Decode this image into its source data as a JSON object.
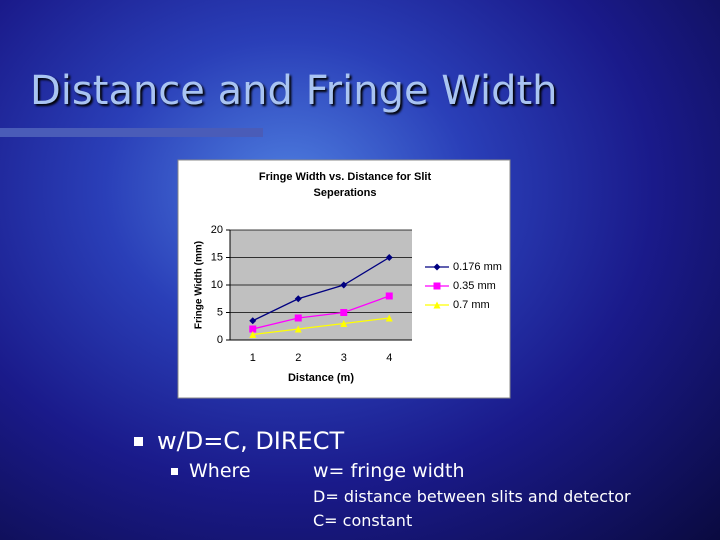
{
  "title": "Distance and Fringe Width",
  "bullets": [
    {
      "text": "w/D=C, DIRECT",
      "sub": [
        {
          "label": "Where",
          "lines": [
            "w= fringe width",
            "D= distance between slits and detector",
            "C= constant"
          ]
        }
      ]
    }
  ],
  "chart_data": {
    "type": "line",
    "title": "Fringe Width vs. Distance for Slit Seperations",
    "x_label": "Distance (m)",
    "y_label": "Fringe Width (mm)",
    "categories": [
      "1",
      "2",
      "3",
      "4"
    ],
    "series": [
      {
        "name": "0.176 mm",
        "color": "#000080",
        "marker": "diamond",
        "values": [
          3.5,
          7.5,
          10,
          15
        ]
      },
      {
        "name": "0.35 mm",
        "color": "#ff00ff",
        "marker": "square",
        "values": [
          2,
          4,
          5,
          8
        ]
      },
      {
        "name": "0.7 mm",
        "color": "#ffff00",
        "marker": "triangle",
        "values": [
          1,
          2,
          3,
          4
        ]
      }
    ],
    "ylim": [
      0,
      20
    ],
    "yticks": [
      0,
      5,
      10,
      15,
      20
    ],
    "grid": true,
    "legend": "right"
  }
}
